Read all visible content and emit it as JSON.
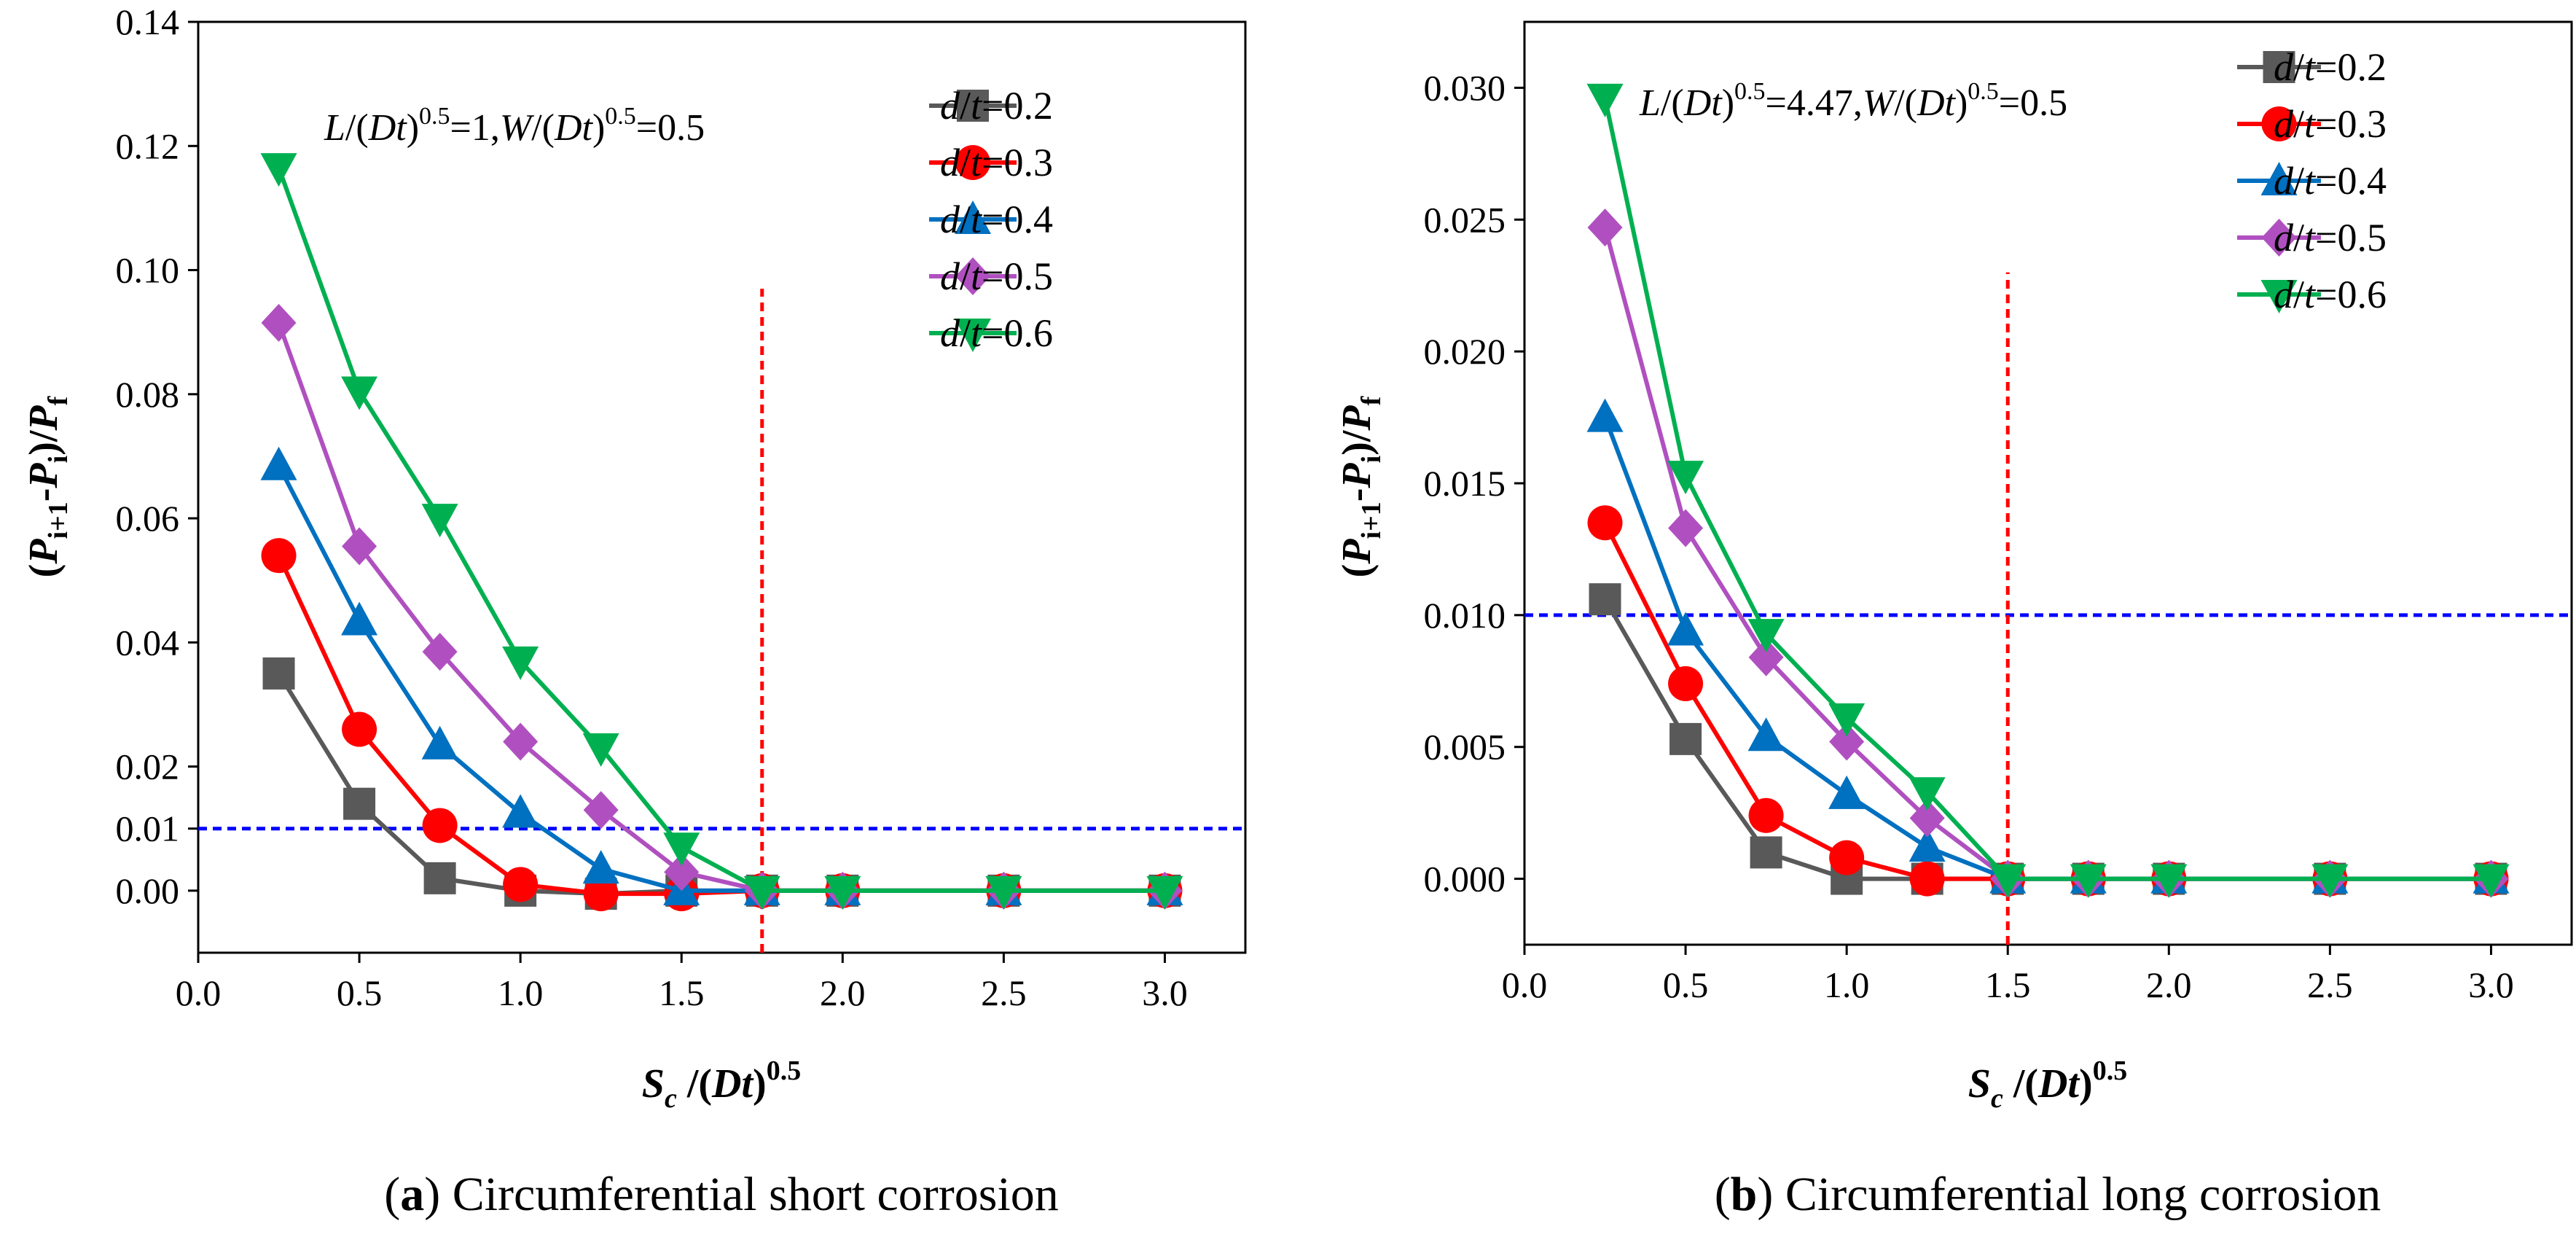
{
  "chart_data": [
    {
      "type": "line",
      "caption_letter": "a",
      "caption_text": "Circumferential short corrosion",
      "annotation": {
        "L": "L",
        "D": "D",
        "t": "t",
        "W": "W",
        "open": "/(",
        "close": ")",
        "exp": "0.5",
        "val1": "=1,",
        "val2": "=0.5"
      },
      "xlabel": {
        "S": "S",
        "sub": "c",
        "mid": " /(",
        "Dt": "Dt",
        "close": ")",
        "exp": "0.5"
      },
      "ylabel": {
        "open": "(",
        "P1": "P",
        "sub1": "i+1",
        "minus": "-",
        "P2": "P",
        "sub2": "i",
        "close": ")/",
        "P3": "P",
        "sub3": "f"
      },
      "xlim": [
        0.0,
        3.25
      ],
      "ylim": [
        -0.01,
        0.14
      ],
      "xticks": [
        "0.0",
        "0.5",
        "1.0",
        "1.5",
        "2.0",
        "2.5",
        "3.0"
      ],
      "xtick_values": [
        0.0,
        0.5,
        1.0,
        1.5,
        2.0,
        2.5,
        3.0
      ],
      "yticks": [
        "0.00",
        "0.01",
        "0.02",
        "0.04",
        "0.06",
        "0.08",
        "0.10",
        "0.12",
        "0.14"
      ],
      "ytick_values": [
        0.0,
        0.01,
        0.02,
        0.04,
        0.06,
        0.08,
        0.1,
        0.12,
        0.14
      ],
      "x": [
        0.25,
        0.5,
        0.75,
        1.0,
        1.25,
        1.5,
        1.75,
        2.0,
        2.5,
        3.0
      ],
      "hline": 0.01,
      "vline": 1.75,
      "vline_top": 0.097,
      "series": [
        {
          "name": "d/t=0.2",
          "values": [
            0.035,
            0.014,
            0.002,
            0.0,
            -0.0005,
            0.0,
            0.0,
            0.0,
            0.0,
            0.0
          ]
        },
        {
          "name": "d/t=0.3",
          "values": [
            0.054,
            0.026,
            0.0105,
            0.001,
            -0.0005,
            -0.0005,
            0.0,
            0.0,
            0.0,
            0.0
          ]
        },
        {
          "name": "d/t=0.4",
          "values": [
            0.0685,
            0.0435,
            0.0235,
            0.0125,
            0.0035,
            0.0,
            0.0,
            0.0,
            0.0,
            0.0
          ]
        },
        {
          "name": "d/t=0.5",
          "values": [
            0.0915,
            0.0555,
            0.0385,
            0.024,
            0.013,
            0.003,
            0.0,
            0.0,
            0.0,
            0.0
          ]
        },
        {
          "name": "d/t=0.6",
          "values": [
            0.1165,
            0.0805,
            0.06,
            0.037,
            0.023,
            0.007,
            0.0,
            0.0,
            0.0,
            0.0
          ]
        }
      ]
    },
    {
      "type": "line",
      "caption_letter": "b",
      "caption_text": "Circumferential long corrosion",
      "annotation": {
        "L": "L",
        "D": "D",
        "t": "t",
        "W": "W",
        "open": "/(",
        "close": ")",
        "exp": "0.5",
        "val1": "=4.47,",
        "val2": "=0.5"
      },
      "xlabel": {
        "S": "S",
        "sub": "c",
        "mid": " /(",
        "Dt": "Dt",
        "close": ")",
        "exp": "0.5"
      },
      "ylabel": {
        "open": "(",
        "P1": "P",
        "sub1": "i+1",
        "minus": "-",
        "P2": "P",
        "sub2": "i",
        "close": ")/",
        "P3": "P",
        "sub3": "f"
      },
      "xlim": [
        0.0,
        3.25
      ],
      "ylim": [
        -0.0025,
        0.0325
      ],
      "xticks": [
        "0.0",
        "0.5",
        "1.0",
        "1.5",
        "2.0",
        "2.5",
        "3.0"
      ],
      "xtick_values": [
        0.0,
        0.5,
        1.0,
        1.5,
        2.0,
        2.5,
        3.0
      ],
      "yticks": [
        "0.000",
        "0.005",
        "0.010",
        "0.015",
        "0.020",
        "0.025",
        "0.030"
      ],
      "ytick_values": [
        0.0,
        0.005,
        0.01,
        0.015,
        0.02,
        0.025,
        0.03
      ],
      "x": [
        0.25,
        0.5,
        0.75,
        1.0,
        1.25,
        1.5,
        1.75,
        2.0,
        2.5,
        3.0
      ],
      "hline": 0.01,
      "vline": 1.5,
      "vline_top": 0.023,
      "series": [
        {
          "name": "d/t=0.2",
          "values": [
            0.0106,
            0.0053,
            0.001,
            0.0,
            0.0,
            0.0,
            0.0,
            0.0,
            0.0,
            0.0
          ]
        },
        {
          "name": "d/t=0.3",
          "values": [
            0.0135,
            0.0074,
            0.0024,
            0.0008,
            0.0,
            0.0,
            0.0,
            0.0,
            0.0,
            0.0
          ]
        },
        {
          "name": "d/t=0.4",
          "values": [
            0.0175,
            0.0094,
            0.0054,
            0.0032,
            0.0012,
            0.0,
            0.0,
            0.0,
            0.0,
            0.0
          ]
        },
        {
          "name": "d/t=0.5",
          "values": [
            0.0247,
            0.0133,
            0.0084,
            0.0052,
            0.0023,
            0.0,
            0.0,
            0.0,
            0.0,
            0.0
          ]
        },
        {
          "name": "d/t=0.6",
          "values": [
            0.0296,
            0.0153,
            0.0093,
            0.0061,
            0.0033,
            0.0,
            0.0,
            0.0,
            0.0,
            0.0
          ]
        }
      ]
    }
  ],
  "legend_labels": [
    {
      "d": "d",
      "slash": "/",
      "t": "t",
      "val": "=0.2"
    },
    {
      "d": "d",
      "slash": "/",
      "t": "t",
      "val": "=0.3"
    },
    {
      "d": "d",
      "slash": "/",
      "t": "t",
      "val": "=0.4"
    },
    {
      "d": "d",
      "slash": "/",
      "t": "t",
      "val": "=0.5"
    },
    {
      "d": "d",
      "slash": "/",
      "t": "t",
      "val": "=0.6"
    }
  ],
  "series_colors": [
    "#595959",
    "#ff0000",
    "#0070c0",
    "#b050c0",
    "#00b050"
  ],
  "series_markers": [
    "square",
    "circle",
    "triangle-up",
    "diamond",
    "triangle-down"
  ],
  "hline_color": "#0000ff",
  "vline_color": "#ff0000"
}
